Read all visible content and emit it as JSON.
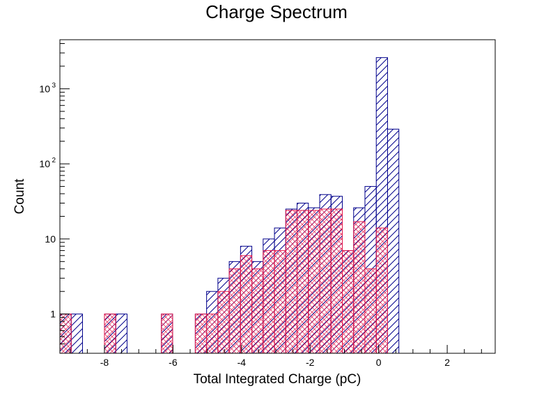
{
  "chart_data": {
    "type": "histogram",
    "title": "Charge Spectrum",
    "xlabel": "Total Integrated Charge (pC)",
    "ylabel": "Count",
    "xlim": [
      -9.3,
      3.4
    ],
    "ylim": [
      0.3,
      4500
    ],
    "yscale": "log",
    "grid": false,
    "legend": "none",
    "bin_width": 0.33,
    "x_ticks": [
      {
        "value": -8,
        "label": "-8"
      },
      {
        "value": -6,
        "label": "-6"
      },
      {
        "value": -4,
        "label": "-4"
      },
      {
        "value": -2,
        "label": "-2"
      },
      {
        "value": 0,
        "label": "0"
      },
      {
        "value": 2,
        "label": "2"
      }
    ],
    "y_ticks": [
      {
        "value": 1,
        "base": "1",
        "exp": ""
      },
      {
        "value": 10,
        "base": "10",
        "exp": ""
      },
      {
        "value": 100,
        "base": "10",
        "exp": "2"
      },
      {
        "value": 1000,
        "base": "10",
        "exp": "3"
      }
    ],
    "series": [
      {
        "color": "#00008b",
        "pattern": "diagonal",
        "bins": [
          {
            "x": -9.3,
            "y": 1
          },
          {
            "x": -8.97,
            "y": 1
          },
          {
            "x": -8.0,
            "y": 1
          },
          {
            "x": -7.67,
            "y": 1
          },
          {
            "x": -6.34,
            "y": 1
          },
          {
            "x": -5.35,
            "y": 1
          },
          {
            "x": -5.02,
            "y": 2
          },
          {
            "x": -4.69,
            "y": 3
          },
          {
            "x": -4.36,
            "y": 5
          },
          {
            "x": -4.03,
            "y": 8
          },
          {
            "x": -3.7,
            "y": 5
          },
          {
            "x": -3.37,
            "y": 10
          },
          {
            "x": -3.04,
            "y": 14
          },
          {
            "x": -2.71,
            "y": 25
          },
          {
            "x": -2.38,
            "y": 30
          },
          {
            "x": -2.05,
            "y": 26
          },
          {
            "x": -1.72,
            "y": 39
          },
          {
            "x": -1.39,
            "y": 37
          },
          {
            "x": -1.06,
            "y": 7
          },
          {
            "x": -0.73,
            "y": 26
          },
          {
            "x": -0.4,
            "y": 50
          },
          {
            "x": -0.07,
            "y": 2600
          },
          {
            "x": 0.26,
            "y": 290
          }
        ]
      },
      {
        "color": "#e6194b",
        "pattern": "crosshatch",
        "bins": [
          {
            "x": -9.3,
            "y": 1
          },
          {
            "x": -8.0,
            "y": 1
          },
          {
            "x": -6.34,
            "y": 1
          },
          {
            "x": -5.35,
            "y": 1
          },
          {
            "x": -5.02,
            "y": 1
          },
          {
            "x": -4.69,
            "y": 2
          },
          {
            "x": -4.36,
            "y": 4
          },
          {
            "x": -4.03,
            "y": 6
          },
          {
            "x": -3.7,
            "y": 4
          },
          {
            "x": -3.37,
            "y": 7
          },
          {
            "x": -3.04,
            "y": 7
          },
          {
            "x": -2.71,
            "y": 24
          },
          {
            "x": -2.38,
            "y": 24
          },
          {
            "x": -2.05,
            "y": 24
          },
          {
            "x": -1.72,
            "y": 25
          },
          {
            "x": -1.39,
            "y": 25
          },
          {
            "x": -1.06,
            "y": 7
          },
          {
            "x": -0.73,
            "y": 17
          },
          {
            "x": -0.4,
            "y": 4
          },
          {
            "x": -0.07,
            "y": 14
          }
        ]
      }
    ]
  }
}
